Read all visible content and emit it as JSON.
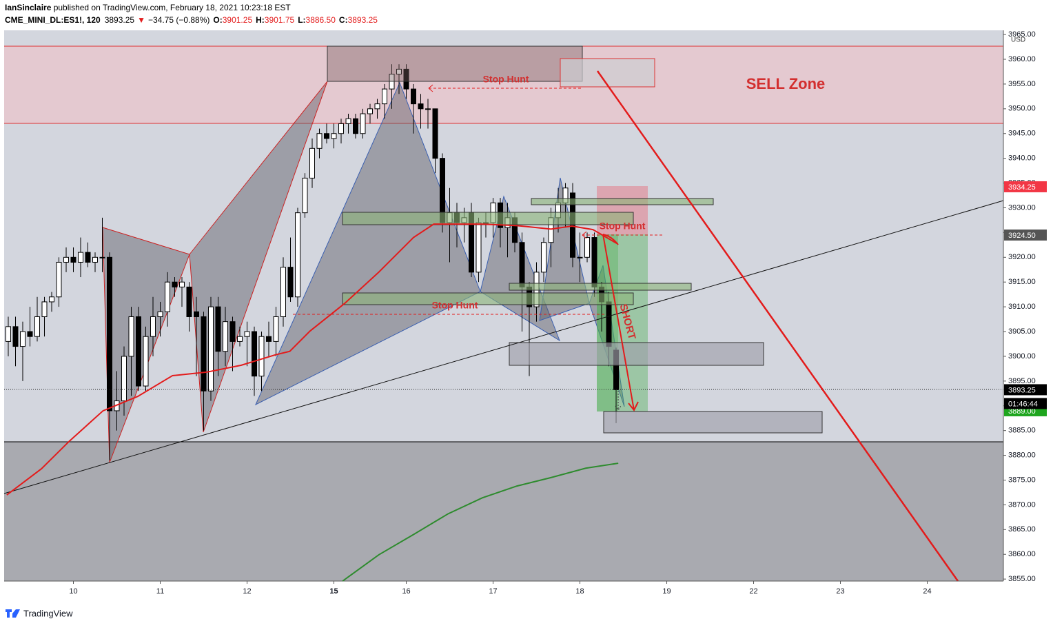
{
  "header": {
    "publisher": "IanSinclaire",
    "published": " published on TradingView.com, February 18, 2021 10:23:18 EST",
    "symbol": "CME_MINI_DL:ES1!, 120",
    "last": "3893.25",
    "arrow": "▼",
    "change": "−34.75 (−0.88%)",
    "ohlc": [
      {
        "label": "O:",
        "value": "3901.25"
      },
      {
        "label": "H:",
        "value": "3901.75"
      },
      {
        "label": "L:",
        "value": "3886.50"
      },
      {
        "label": "C:",
        "value": "3893.25"
      }
    ]
  },
  "footer": {
    "brand": "TradingView"
  },
  "chart_data": {
    "type": "candlestick",
    "currency": "USD",
    "xlim": [
      -0.57,
      137.52
    ],
    "ylim": [
      3854.6,
      3965.85
    ],
    "xticks": [
      {
        "value": 9,
        "label": "10"
      },
      {
        "value": 21,
        "label": "11"
      },
      {
        "value": 33,
        "label": "12"
      },
      {
        "value": 45,
        "label": "15"
      },
      {
        "value": 55,
        "label": "16"
      },
      {
        "value": 67,
        "label": "17"
      },
      {
        "value": 79,
        "label": "18"
      },
      {
        "value": 91,
        "label": "19"
      },
      {
        "value": 103,
        "label": "22"
      },
      {
        "value": 115,
        "label": "23"
      },
      {
        "value": 127,
        "label": "24"
      }
    ],
    "yticks": [
      {
        "value": 3855,
        "label": "3855.00"
      },
      {
        "value": 3860,
        "label": "3860.00"
      },
      {
        "value": 3865,
        "label": "3865.00"
      },
      {
        "value": 3870,
        "label": "3870.00"
      },
      {
        "value": 3875,
        "label": "3875.00"
      },
      {
        "value": 3880,
        "label": "3880.00"
      },
      {
        "value": 3885,
        "label": "3885.00"
      },
      {
        "value": 3890,
        "label": "3890.00"
      },
      {
        "value": 3895,
        "label": "3895.00"
      },
      {
        "value": 3900,
        "label": "3900.00"
      },
      {
        "value": 3905,
        "label": "3905.00"
      },
      {
        "value": 3910,
        "label": "3910.00"
      },
      {
        "value": 3915,
        "label": "3915.00"
      },
      {
        "value": 3920,
        "label": "3920.00"
      },
      {
        "value": 3925,
        "label": "3925.00"
      },
      {
        "value": 3930,
        "label": "3930.00"
      },
      {
        "value": 3935,
        "label": "3935.00"
      },
      {
        "value": 3940,
        "label": "3940.00"
      },
      {
        "value": 3945,
        "label": "3945.00"
      },
      {
        "value": 3950,
        "label": "3950.00"
      },
      {
        "value": 3955,
        "label": "3955.00"
      },
      {
        "value": 3960,
        "label": "3960.00"
      },
      {
        "value": 3965,
        "label": "3965.00"
      }
    ],
    "x": [
      0,
      1,
      2,
      3,
      4,
      5,
      6,
      7,
      8,
      9,
      10,
      11,
      12,
      13,
      14,
      15,
      16,
      17,
      18,
      19,
      20,
      21,
      22,
      23,
      24,
      25,
      26,
      27,
      28,
      29,
      30,
      31,
      32,
      33,
      34,
      35,
      36,
      37,
      38,
      39,
      40,
      41,
      42,
      43,
      44,
      45,
      46,
      47,
      48,
      49,
      50,
      51,
      52,
      53,
      54,
      55,
      56,
      57,
      58,
      59,
      60,
      61,
      62,
      63,
      64,
      65,
      66,
      67,
      68,
      69,
      70,
      71,
      72,
      73,
      74,
      75,
      76,
      77,
      78,
      79,
      80,
      81,
      82,
      83,
      84
    ],
    "candles": [
      [
        3903,
        3908,
        3900,
        3906
      ],
      [
        3906,
        3908,
        3898,
        3902
      ],
      [
        3902,
        3907,
        3895,
        3905
      ],
      [
        3905,
        3910,
        3902,
        3904
      ],
      [
        3904,
        3912,
        3903,
        3908
      ],
      [
        3908,
        3912,
        3904,
        3911
      ],
      [
        3911,
        3913,
        3909,
        3912
      ],
      [
        3912,
        3920,
        3910,
        3919
      ],
      [
        3919,
        3922,
        3917,
        3920
      ],
      [
        3920,
        3922,
        3917,
        3919
      ],
      [
        3919,
        3924,
        3916,
        3921
      ],
      [
        3921,
        3923,
        3918,
        3919
      ],
      [
        3919,
        3921,
        3917,
        3920
      ],
      [
        3920,
        3928,
        3917,
        3920
      ],
      [
        3920,
        3921,
        3879,
        3889
      ],
      [
        3889,
        3897,
        3885,
        3891
      ],
      [
        3891,
        3902,
        3888,
        3900
      ],
      [
        3900,
        3910,
        3892,
        3908
      ],
      [
        3908,
        3910,
        3893,
        3894
      ],
      [
        3894,
        3906,
        3893,
        3904
      ],
      [
        3904,
        3912,
        3900,
        3908
      ],
      [
        3908,
        3911,
        3904,
        3909
      ],
      [
        3909,
        3917,
        3906,
        3915
      ],
      [
        3915,
        3916,
        3912,
        3914
      ],
      [
        3914,
        3916,
        3910,
        3915
      ],
      [
        3914,
        3915,
        3905,
        3908
      ],
      [
        3909,
        3912,
        3896,
        3908
      ],
      [
        3908,
        3909,
        3885,
        3893
      ],
      [
        3893,
        3912,
        3891,
        3910
      ],
      [
        3910,
        3912,
        3896,
        3901
      ],
      [
        3901,
        3910,
        3898,
        3907
      ],
      [
        3907,
        3908,
        3897,
        3903
      ],
      [
        3903,
        3906,
        3902,
        3904
      ],
      [
        3904,
        3907,
        3898,
        3905
      ],
      [
        3905,
        3906,
        3892,
        3896
      ],
      [
        3896,
        3905,
        3893,
        3904
      ],
      [
        3904,
        3907,
        3900,
        3903
      ],
      [
        3903,
        3910,
        3900,
        3908
      ],
      [
        3908,
        3920,
        3906,
        3918
      ],
      [
        3918,
        3924,
        3911,
        3912
      ],
      [
        3912,
        3930,
        3910,
        3929
      ],
      [
        3929,
        3937,
        3928,
        3936
      ],
      [
        3936,
        3944,
        3934,
        3942
      ],
      [
        3942,
        3946,
        3940,
        3945
      ],
      [
        3945,
        3947,
        3943,
        3944
      ],
      [
        3944,
        3947,
        3942,
        3945
      ],
      [
        3945,
        3948,
        3943,
        3947
      ],
      [
        3947,
        3949,
        3945,
        3948
      ],
      [
        3948,
        3949,
        3944,
        3945
      ],
      [
        3945,
        3950,
        3944,
        3949
      ],
      [
        3949,
        3951,
        3947,
        3950
      ],
      [
        3950,
        3952,
        3948,
        3951
      ],
      [
        3951,
        3955,
        3948,
        3954
      ],
      [
        3954,
        3959,
        3950,
        3957
      ],
      [
        3957,
        3959,
        3953,
        3958
      ],
      [
        3958,
        3959,
        3952,
        3954
      ],
      [
        3954,
        3955,
        3945,
        3951
      ],
      [
        3951,
        3953,
        3946,
        3950
      ],
      [
        3950,
        3952,
        3946,
        3950
      ],
      [
        3950,
        3950,
        3937,
        3940
      ],
      [
        3940,
        3941,
        3925,
        3927
      ],
      [
        3927,
        3934,
        3919,
        3929
      ],
      [
        3929,
        3931,
        3922,
        3927
      ],
      [
        3927,
        3930,
        3923,
        3928
      ],
      [
        3929,
        3931,
        3916,
        3917
      ],
      [
        3917,
        3928,
        3915,
        3927
      ],
      [
        3927,
        3929,
        3924,
        3927
      ],
      [
        3927,
        3932,
        3924,
        3931
      ],
      [
        3931,
        3932,
        3922,
        3926
      ],
      [
        3926,
        3931,
        3920,
        3928
      ],
      [
        3928,
        3929,
        3921,
        3923
      ],
      [
        3923,
        3925,
        3905,
        3914
      ],
      [
        3914,
        3915,
        3896,
        3910
      ],
      [
        3910,
        3919,
        3907,
        3917
      ],
      [
        3917,
        3924,
        3915,
        3923
      ],
      [
        3923,
        3930,
        3918,
        3928
      ],
      [
        3928,
        3934,
        3925,
        3931
      ],
      [
        3931,
        3935,
        3926,
        3934
      ],
      [
        3933,
        3935,
        3918,
        3920
      ],
      [
        3920,
        3925,
        3915,
        3920
      ],
      [
        3920,
        3925,
        3919,
        3924
      ],
      [
        3924,
        3925,
        3912,
        3914
      ],
      [
        3914,
        3915,
        3905,
        3911
      ],
      [
        3911,
        3913,
        3898,
        3902
      ],
      [
        3901.25,
        3901.75,
        3886.5,
        3893.25
      ]
    ],
    "candle_colors": {
      "up": "#ffffff",
      "down": "#000000",
      "outline": "#000000"
    },
    "lines": [
      {
        "color": "#e31b1b",
        "x": [
          -0.2,
          4.6,
          8.4,
          13.1,
          17.9,
          22.7,
          27.4,
          32.2,
          36.9,
          38.9,
          41.7,
          46.5,
          51.2,
          56,
          58.8,
          65.5,
          70.3,
          75,
          77.9,
          80.8,
          84.1
        ],
        "values": [
          3872,
          3877.3,
          3882.8,
          3889,
          3891.9,
          3896.1,
          3896.8,
          3898.2,
          3900.3,
          3901,
          3905.1,
          3910.7,
          3917,
          3924,
          3926.7,
          3926.7,
          3926.4,
          3925.7,
          3926.3,
          3925.6,
          3922.8
        ]
      },
      {
        "color": "#2e8b2e",
        "x": [
          46.2,
          51.2,
          56,
          60.8,
          65.5,
          70.3,
          75,
          79.8,
          84.3
        ],
        "values": [
          3854.6,
          3859.9,
          3864,
          3868.2,
          3871.4,
          3873.8,
          3875.5,
          3877.4,
          3878.4
        ]
      }
    ],
    "price_labels": [
      {
        "value": 3934.25,
        "label": "3934.25",
        "color": "#f23645"
      },
      {
        "value": 3924.5,
        "label": "3924.50",
        "color": "#555555"
      },
      {
        "value": 3893.25,
        "label": "3893.25",
        "color": "#000000"
      },
      {
        "value": 3889,
        "label": "3889.00",
        "color": "#1ea51e"
      }
    ],
    "countdown": "01:46:44",
    "current_price": 3893.25,
    "annotations": [
      "Stop Hunt",
      "Stop Hunt",
      "Stop Hunt",
      "SELL Zone",
      "SHORT"
    ]
  }
}
